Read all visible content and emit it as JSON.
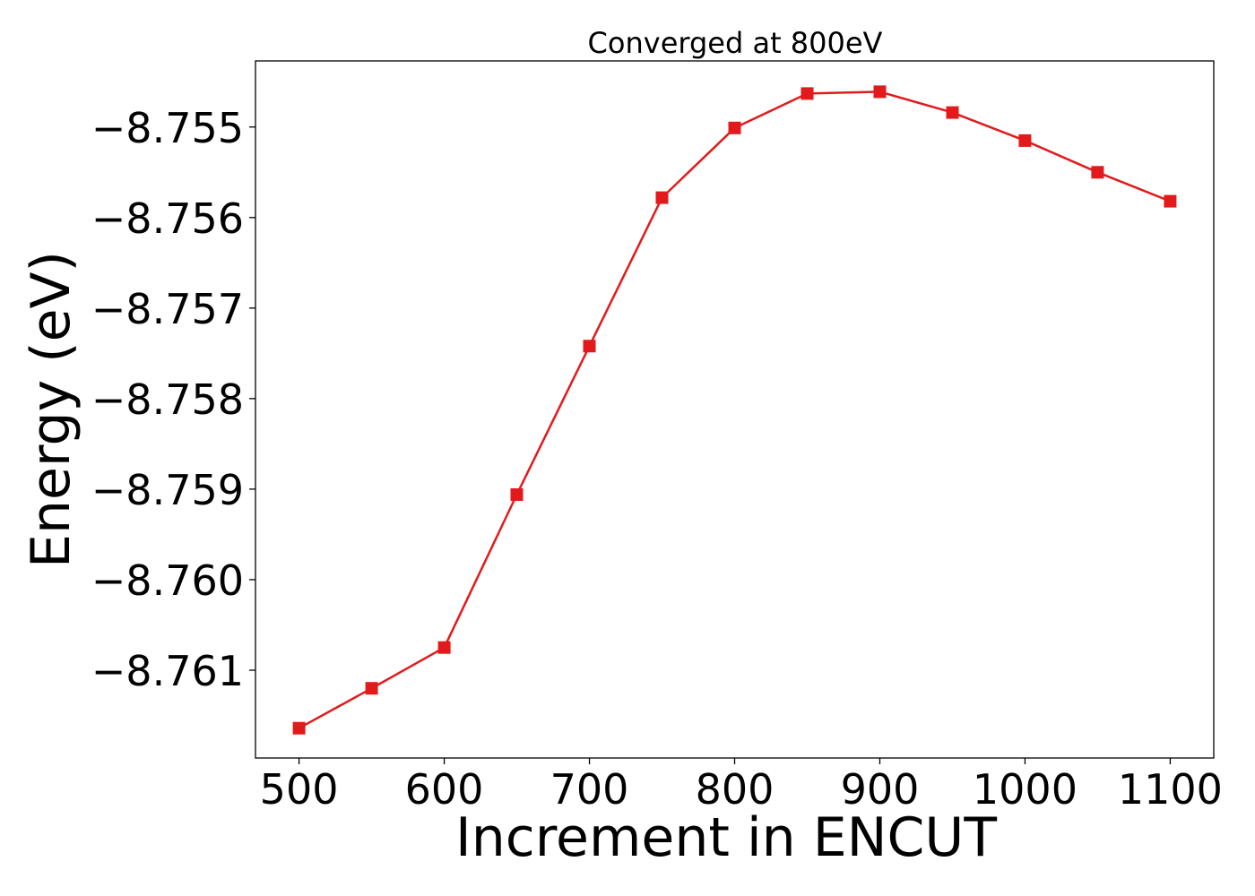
{
  "chart_data": {
    "type": "line",
    "title": "Converged at 800eV",
    "xlabel": "Increment in ENCUT",
    "ylabel": "Energy (eV)",
    "x": [
      500,
      550,
      600,
      650,
      700,
      750,
      800,
      850,
      900,
      950,
      1000,
      1050,
      1100
    ],
    "series": [
      {
        "name": "",
        "values": [
          -8.76164,
          -8.7612,
          -8.76075,
          -8.75906,
          -8.75742,
          -8.75578,
          -8.75501,
          -8.75463,
          -8.75461,
          -8.75484,
          -8.75515,
          -8.7555,
          -8.75582
        ],
        "color": "#e31a1c",
        "marker": "square"
      }
    ],
    "x_ticks": [
      500,
      600,
      700,
      800,
      900,
      1000,
      1100
    ],
    "x_tick_labels": [
      "500",
      "600",
      "700",
      "800",
      "900",
      "1000",
      "1100"
    ],
    "y_ticks": [
      -8.755,
      -8.756,
      -8.757,
      -8.758,
      -8.759,
      -8.76,
      -8.761
    ],
    "y_tick_labels": [
      "−8.755",
      "−8.756",
      "−8.757",
      "−8.758",
      "−8.759",
      "−8.760",
      "−8.761"
    ],
    "xlim": [
      470,
      1130
    ],
    "ylim": [
      -8.76197,
      -8.75427
    ],
    "grid": false,
    "legend": "none"
  }
}
